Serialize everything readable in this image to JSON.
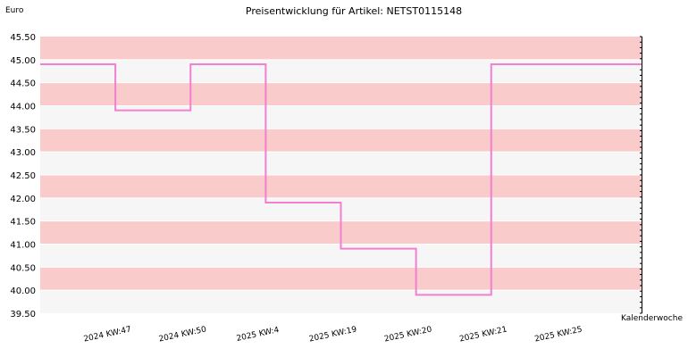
{
  "chart_data": {
    "type": "line",
    "step": true,
    "title": "Preisentwicklung für Artikel: NETST0115148",
    "ylabel": "Euro",
    "xlabel": "Kalenderwoche",
    "ylim": [
      39.5,
      45.5
    ],
    "ytick_step": 0.5,
    "yticks": [
      "45.50",
      "45.00",
      "44.50",
      "44.00",
      "43.50",
      "43.00",
      "42.50",
      "42.00",
      "41.50",
      "41.00",
      "40.50",
      "40.00",
      "39.50"
    ],
    "categories": [
      "2024 KW:47",
      "2024 KW:50",
      "2025 KW:4",
      "2025 KW:19",
      "2025 KW:20",
      "2025 KW:21",
      "2025 KW:25"
    ],
    "values": [
      44.9,
      43.9,
      44.9,
      41.9,
      40.9,
      39.9,
      44.9
    ],
    "grid": true,
    "band_colors": [
      "#f9cbcb",
      "#f6f6f6"
    ],
    "line_color": "#f27fd0",
    "axis_color": "#000000"
  }
}
